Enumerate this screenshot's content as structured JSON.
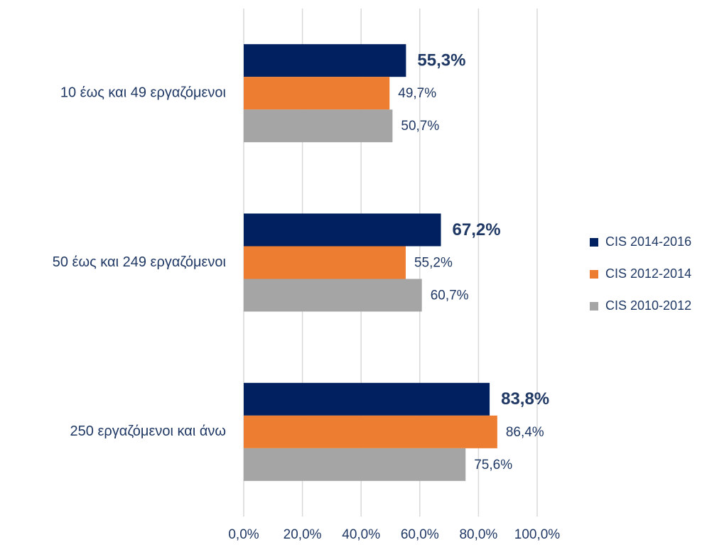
{
  "chart_data": {
    "type": "bar",
    "orientation": "horizontal",
    "categories": [
      "10 έως και 49 εργαζόμενοι",
      "50 έως και 249 εργαζόμενοι",
      "250 εργαζόμενοι και άνω"
    ],
    "series": [
      {
        "name": "CIS 2014-2016",
        "color": "#002060",
        "values": [
          55.3,
          67.2,
          83.8
        ],
        "value_labels": [
          "55,3%",
          "67,2%",
          "83,8%"
        ]
      },
      {
        "name": "CIS 2012-2014",
        "color": "#ED7D31",
        "values": [
          49.7,
          55.2,
          86.4
        ],
        "value_labels": [
          "49,7%",
          "55,2%",
          "86,4%"
        ]
      },
      {
        "name": "CIS 2010-2012",
        "color": "#A5A5A5",
        "values": [
          50.7,
          60.7,
          75.6
        ],
        "value_labels": [
          "50,7%",
          "60,7%",
          "75,6%"
        ]
      }
    ],
    "xlim": [
      0,
      100
    ],
    "xticks": [
      {
        "value": 0,
        "label": "0,0%"
      },
      {
        "value": 20,
        "label": "20,0%"
      },
      {
        "value": 40,
        "label": "40,0%"
      },
      {
        "value": 60,
        "label": "60,0%"
      },
      {
        "value": 80,
        "label": "80,0%"
      },
      {
        "value": 100,
        "label": "100,0%"
      }
    ],
    "grid": true,
    "legend": "right"
  }
}
